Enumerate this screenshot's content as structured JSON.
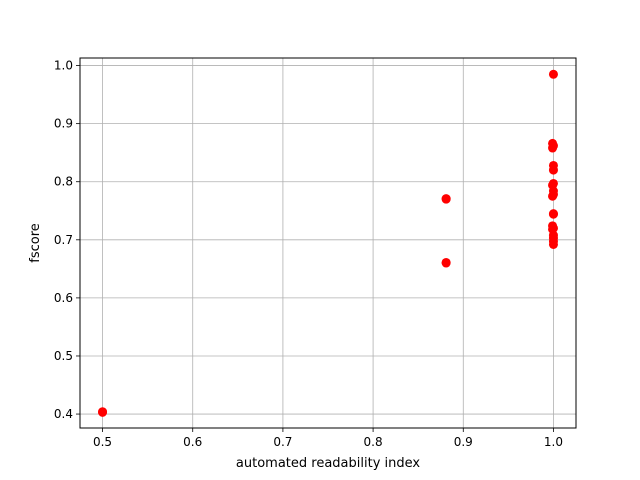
{
  "chart_data": {
    "type": "scatter",
    "title": "",
    "xlabel": "automated readability index",
    "ylabel": "fscore",
    "xlim": [
      0.475,
      1.025
    ],
    "ylim": [
      0.376,
      1.013
    ],
    "xticks": [
      0.5,
      0.6,
      0.7,
      0.8,
      0.9,
      1.0
    ],
    "xtick_labels": [
      "0.5",
      "0.6",
      "0.7",
      "0.8",
      "0.9",
      "1.0"
    ],
    "yticks": [
      0.4,
      0.5,
      0.6,
      0.7,
      0.8,
      0.9,
      1.0
    ],
    "ytick_labels": [
      "0.4",
      "0.5",
      "0.6",
      "0.7",
      "0.8",
      "0.9",
      "1.0"
    ],
    "grid": true,
    "marker_color": "#ff0000",
    "grid_color": "#b0b0b0",
    "series": [
      {
        "x": [
          0.5,
          0.5,
          0.881,
          0.881,
          0.881,
          0.881,
          1.0,
          0.999,
          1.0,
          0.999,
          1.0,
          1.0,
          1.0,
          0.999,
          1.0,
          1.0,
          0.999,
          1.0,
          1.0,
          0.999,
          1.0,
          0.999,
          1.0,
          1.0,
          1.0,
          1.0
        ],
        "y": [
          0.404,
          0.403,
          0.771,
          0.77,
          0.661,
          0.66,
          0.985,
          0.866,
          0.862,
          0.858,
          0.828,
          0.82,
          0.797,
          0.794,
          0.784,
          0.778,
          0.775,
          0.745,
          0.744,
          0.724,
          0.72,
          0.718,
          0.708,
          0.703,
          0.697,
          0.692
        ]
      }
    ]
  }
}
